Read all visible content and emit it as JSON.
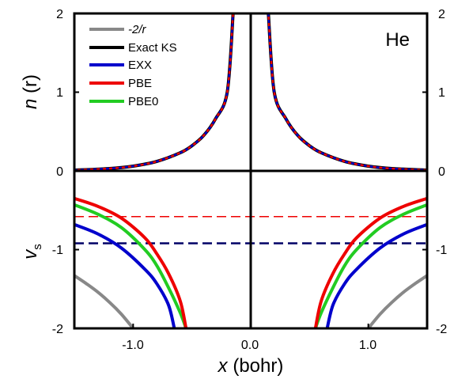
{
  "chart_data": {
    "type": "line",
    "annotation": "He",
    "xlabel_var": "x",
    "xlabel_unit": " (bohr)",
    "upper_ylabel_var": "n",
    "upper_ylabel_arg": " (r)",
    "lower_ylabel_var": "v",
    "lower_ylabel_sub": "s",
    "xlim": [
      -1.5,
      1.5
    ],
    "ylim": [
      -2,
      2
    ],
    "xticks": [
      "-1.0",
      "0.0",
      "1.0"
    ],
    "yticks_left": [
      "2",
      "1",
      "0",
      "-1",
      "-2"
    ],
    "yticks_right": [
      "2",
      "1",
      "0",
      "-1",
      "-2"
    ],
    "grid": false,
    "legend_position": "top-left",
    "series": [
      {
        "name": "-2/r",
        "color": "#888888",
        "x": [
          -1.5,
          -1.4,
          -1.3,
          -1.2,
          -1.1,
          -1.0,
          1.0,
          1.1,
          1.2,
          1.3,
          1.4,
          1.5
        ],
        "y": [
          -1.33,
          -1.43,
          -1.54,
          -1.67,
          -1.82,
          -2.0,
          -2.0,
          -1.82,
          -1.67,
          -1.54,
          -1.43,
          -1.33
        ]
      },
      {
        "name": "Exact KS",
        "color": "#000000",
        "x": [
          -1.5,
          -1.2,
          -1.0,
          -0.8,
          -0.6,
          -0.5,
          -0.4,
          -0.3,
          -0.2,
          -0.15,
          0.15,
          0.2,
          0.3,
          0.4,
          0.5,
          0.6,
          0.8,
          1.0,
          1.2,
          1.5
        ],
        "y": [
          0.01,
          0.03,
          0.06,
          0.12,
          0.23,
          0.32,
          0.45,
          0.66,
          1.0,
          2.0,
          2.0,
          1.0,
          0.66,
          0.45,
          0.32,
          0.23,
          0.12,
          0.06,
          0.03,
          0.01
        ]
      },
      {
        "name": "EXX",
        "color": "#0000cc",
        "x": [
          -1.5,
          -1.3,
          -1.1,
          -0.9,
          -0.8,
          -0.7,
          -0.65,
          0.65,
          0.7,
          0.8,
          0.9,
          1.1,
          1.3,
          1.5
        ],
        "y": [
          -0.68,
          -0.8,
          -0.98,
          -1.25,
          -1.43,
          -1.7,
          -2.0,
          -2.0,
          -1.7,
          -1.43,
          -1.25,
          -0.98,
          -0.8,
          -0.68
        ],
        "ks_level": -0.92
      },
      {
        "name": "PBE",
        "color": "#ee0000",
        "x": [
          -1.5,
          -1.3,
          -1.1,
          -0.9,
          -0.8,
          -0.7,
          -0.6,
          -0.55,
          0.55,
          0.6,
          0.7,
          0.8,
          0.9,
          1.1,
          1.3,
          1.5
        ],
        "y": [
          -0.35,
          -0.45,
          -0.6,
          -0.85,
          -1.05,
          -1.3,
          -1.65,
          -2.0,
          -2.0,
          -1.65,
          -1.3,
          -1.05,
          -0.85,
          -0.6,
          -0.45,
          -0.35
        ],
        "ks_level": -0.58
      },
      {
        "name": "PBE0",
        "color": "#22cc22",
        "x": [
          -1.5,
          -1.3,
          -1.1,
          -0.9,
          -0.8,
          -0.7,
          -0.6,
          -0.55,
          0.55,
          0.6,
          0.7,
          0.8,
          0.9,
          1.1,
          1.3,
          1.5
        ],
        "y": [
          -0.43,
          -0.55,
          -0.72,
          -1.0,
          -1.2,
          -1.48,
          -1.8,
          -2.0,
          -2.0,
          -1.8,
          -1.48,
          -1.2,
          -1.0,
          -0.72,
          -0.55,
          -0.43
        ]
      }
    ]
  }
}
